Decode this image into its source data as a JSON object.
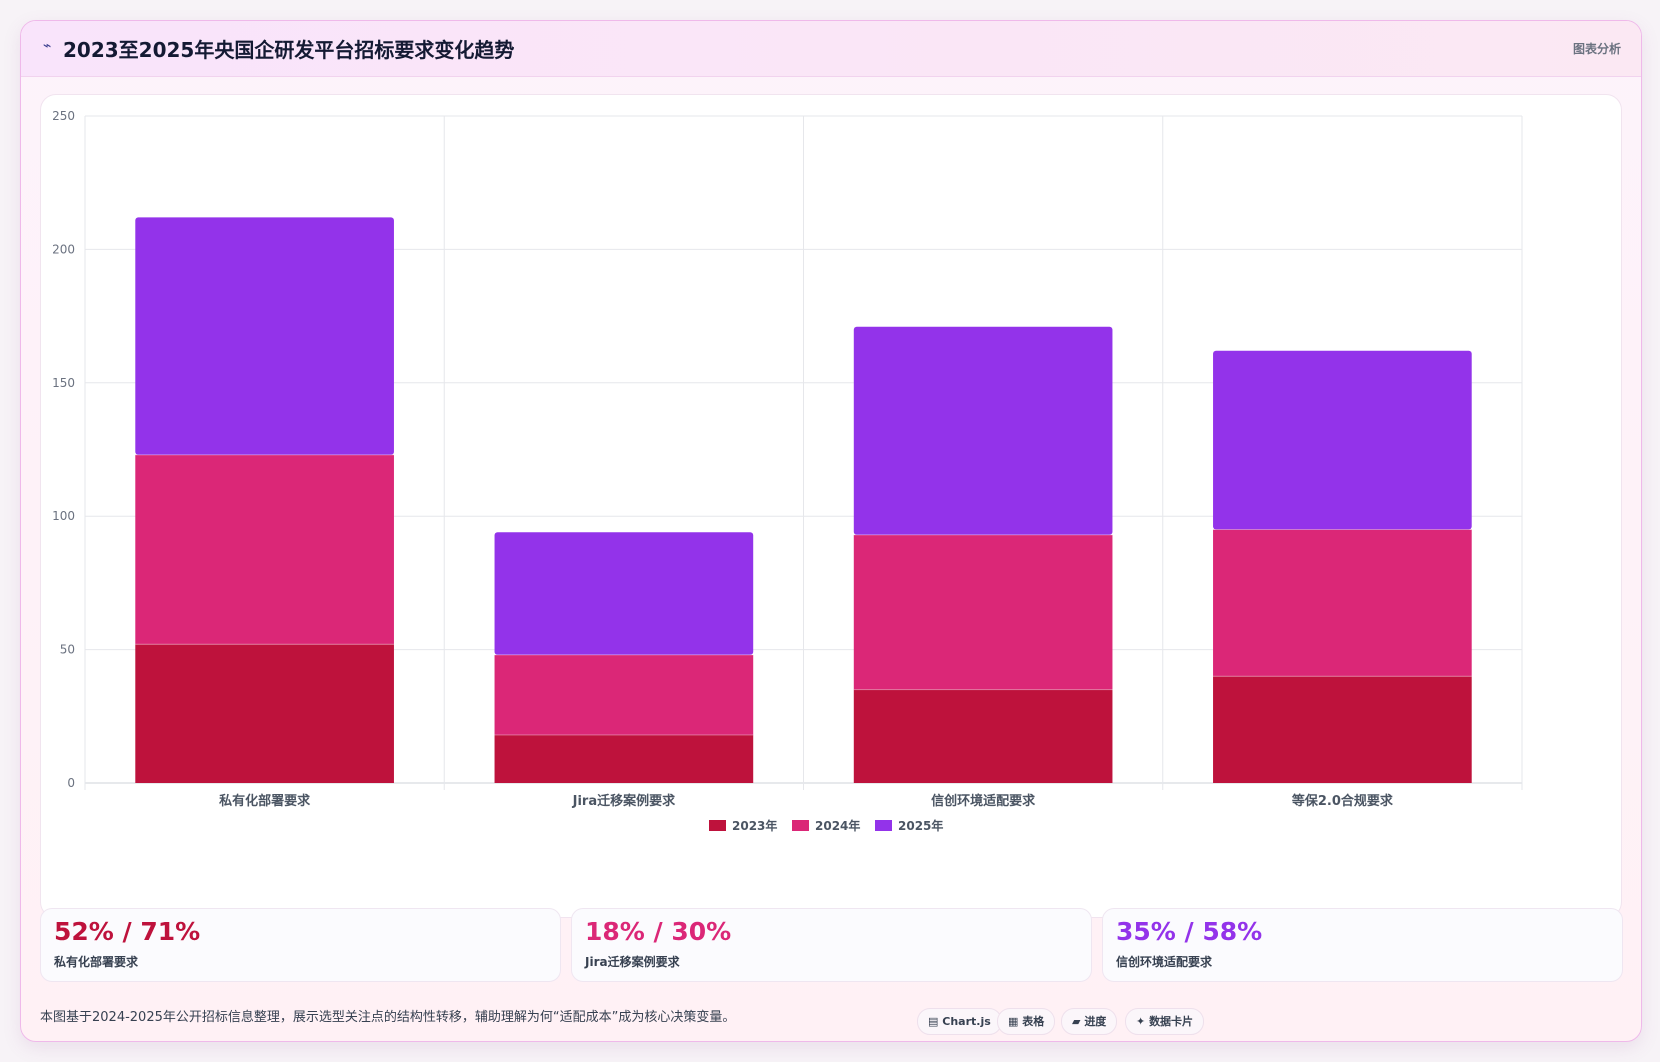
{
  "header": {
    "icon": "chart-line-icon",
    "title": "2023至2025年央国企研发平台招标要求变化趋势",
    "badge": "图表分析"
  },
  "chart_data": {
    "type": "bar",
    "stacked": true,
    "categories": [
      "私有化部署要求",
      "Jira迁移案例要求",
      "信创环境适配要求",
      "等保2.0合规要求"
    ],
    "series": [
      {
        "name": "2023年",
        "color": "#be123c",
        "values": [
          52,
          18,
          35,
          40
        ]
      },
      {
        "name": "2024年",
        "color": "#db2777",
        "values": [
          71,
          30,
          58,
          55
        ]
      },
      {
        "name": "2025年",
        "color": "#9333ea",
        "values": [
          89,
          46,
          78,
          67
        ]
      }
    ],
    "ylim": [
      0,
      250
    ],
    "yticks": [
      0,
      50,
      100,
      150,
      200,
      250
    ],
    "grid": true,
    "legend": "bottom"
  },
  "stats": [
    {
      "value": "52% / 71%",
      "label": "私有化部署要求",
      "color": "#be123c"
    },
    {
      "value": "18% / 30%",
      "label": "Jira迁移案例要求",
      "color": "#db2777"
    },
    {
      "value": "35% / 58%",
      "label": "信创环境适配要求",
      "color": "#9333ea"
    }
  ],
  "footer": {
    "note": "本图基于2024-2025年公开招标信息整理，展示选型关注点的结构性转移，辅助理解为何“适配成本”成为核心决策变量。",
    "tags": [
      {
        "icon": "chart-icon",
        "glyph": "▤",
        "label": "Chart.js"
      },
      {
        "icon": "table-icon",
        "glyph": "▦",
        "label": "表格"
      },
      {
        "icon": "progress-icon",
        "glyph": "▰",
        "label": "进度"
      },
      {
        "icon": "sparkle-icon",
        "glyph": "✦",
        "label": "数据卡片"
      }
    ]
  }
}
